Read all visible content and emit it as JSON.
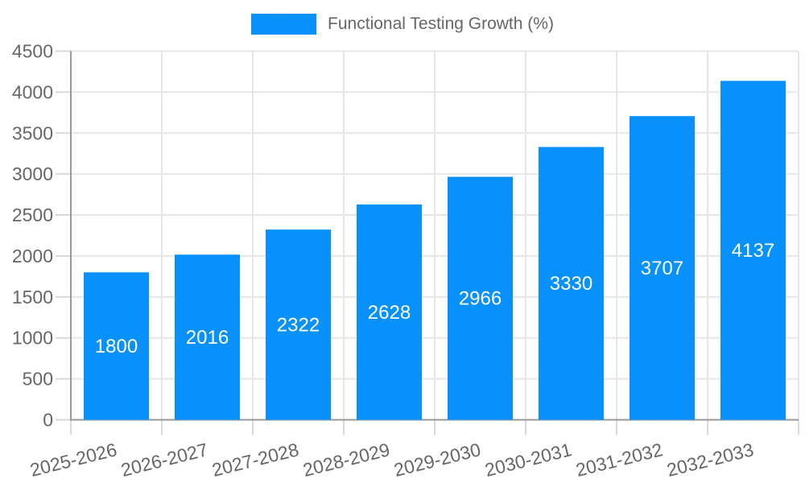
{
  "chart_data": {
    "type": "bar",
    "title": "",
    "series_label": "Functional Testing Growth (%)",
    "categories": [
      "2025-2026",
      "2026-2027",
      "2027-2028",
      "2028-2029",
      "2029-2030",
      "2030-2031",
      "2031-2032",
      "2032-2033"
    ],
    "values": [
      1800,
      2016,
      2322,
      2628,
      2966,
      3330,
      3707,
      4137
    ],
    "value_labels": [
      "1800",
      "2016",
      "2322",
      "2628",
      "2966",
      "3330",
      "3707",
      "4137"
    ],
    "xlabel": "",
    "ylabel": "",
    "ylim": [
      0,
      4500
    ],
    "ytick_step": 500,
    "ytick_labels": [
      "0",
      "500",
      "1000",
      "1500",
      "2000",
      "2500",
      "3000",
      "3500",
      "4000",
      "4500"
    ],
    "legend_position": "top",
    "grid": {
      "horizontal": true,
      "vertical": true
    },
    "x_label_rotation_deg": -14,
    "colors": {
      "bar": "#0991fb",
      "grid": "#e6e6e6",
      "tick": "#d9d9d9",
      "axis": "#999999",
      "axis_text": "#666666",
      "value_label": "#ffffff",
      "background": "#ffffff"
    }
  }
}
